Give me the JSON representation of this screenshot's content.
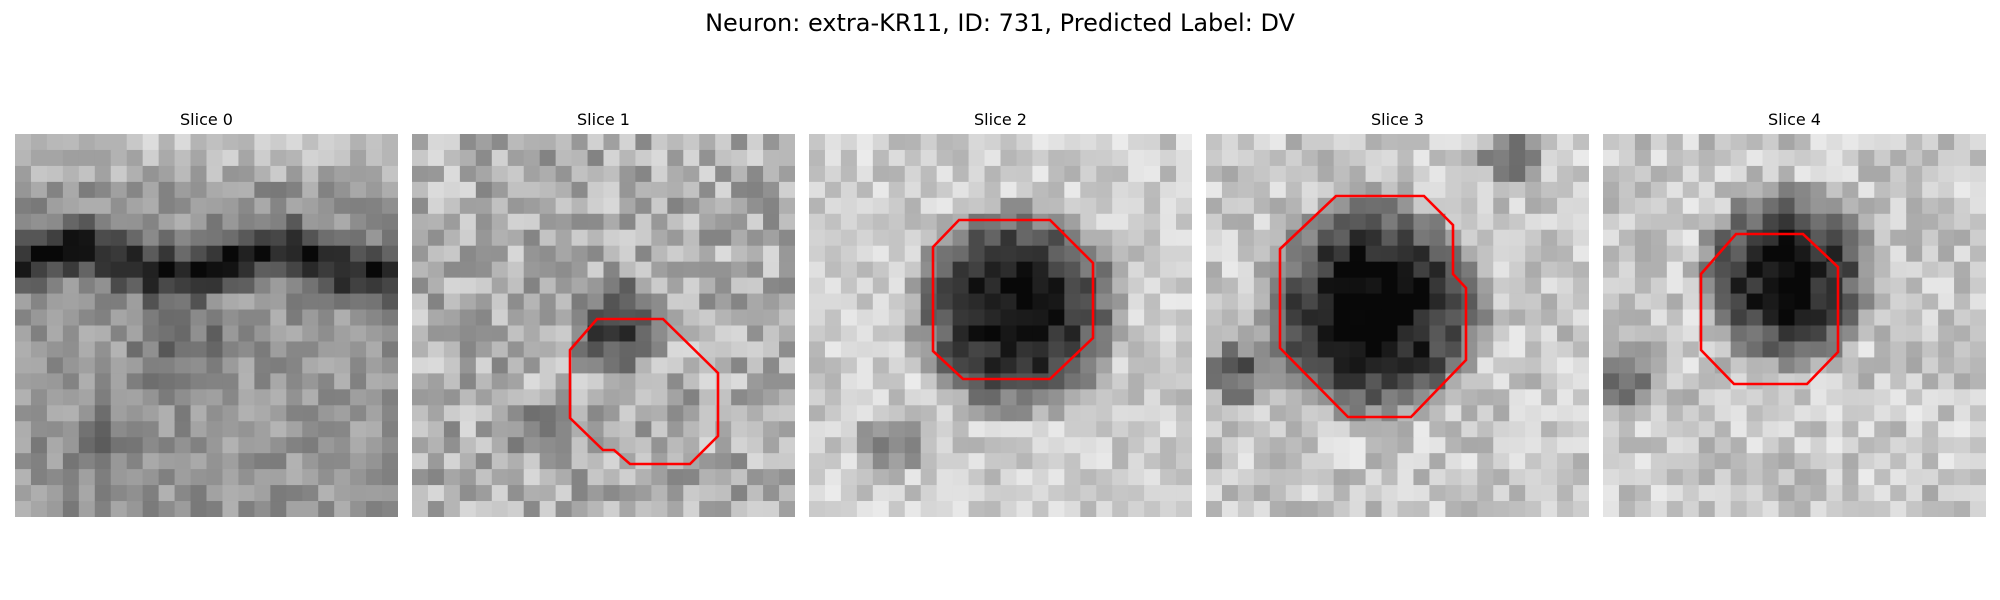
{
  "figure": {
    "title": "Neuron: extra-KR11, ID: 731, Predicted Label: DV"
  },
  "contour_color": "#ff0000",
  "panels": [
    {
      "title": "Slice 0"
    },
    {
      "title": "Slice 1"
    },
    {
      "title": "Slice 2"
    },
    {
      "title": "Slice 3"
    },
    {
      "title": "Slice 4"
    }
  ]
}
